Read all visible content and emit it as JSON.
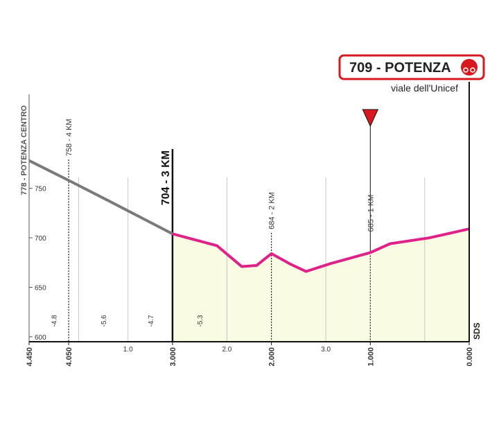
{
  "chart_data": {
    "type": "profile",
    "start_label": "778 - POTENZA CENTRO",
    "finish_label": "709 - POTENZA",
    "finish_street": "viale dell'Unicef",
    "brand": "SDS",
    "xlim": [
      4.45,
      0
    ],
    "ylim": [
      595,
      845
    ],
    "yticks": [
      600,
      650,
      700,
      750
    ],
    "xticks": [
      {
        "value": 4.45,
        "label": "4.450"
      },
      {
        "value": 4.05,
        "label": "4.050"
      },
      {
        "value": 3.0,
        "label": "3.000"
      },
      {
        "value": 2.0,
        "label": "2.000"
      },
      {
        "value": 1.0,
        "label": "1.000"
      },
      {
        "value": 0,
        "label": "0.000"
      }
    ],
    "km_marks": [
      {
        "value": 3.45,
        "label": "1.0"
      },
      {
        "value": 2.45,
        "label": "2.0"
      },
      {
        "value": 1.45,
        "label": "3.0"
      }
    ],
    "divisions": [
      3.95,
      0.45
    ],
    "gradients": [
      {
        "from": 4.45,
        "to": 3.95,
        "value": -4.8
      },
      {
        "from": 3.95,
        "to": 3.45,
        "value": -5.6
      },
      {
        "from": 3.45,
        "to": 3.0,
        "value": -4.7
      },
      {
        "from": 3.0,
        "to": 2.45,
        "value": -5.3
      }
    ],
    "series": [
      {
        "color": "#7a7a7a",
        "x": [
          4.45,
          4.05,
          3.6,
          3.0
        ],
        "values": [
          778,
          758,
          735,
          704
        ]
      },
      {
        "color": "#e0218a",
        "fill": "#fafbe3",
        "x": [
          3.0,
          2.55,
          2.3,
          2.15,
          2.0,
          1.8,
          1.65,
          1.4,
          1.0,
          0.8,
          0.4,
          0
        ],
        "values": [
          704,
          692,
          671,
          672,
          684,
          673,
          666,
          674,
          685,
          694,
          700,
          709
        ]
      }
    ],
    "annotations": [
      {
        "x": 4.05,
        "label": "758 - 4 KM"
      },
      {
        "x": 3.0,
        "label": "704 - 3 KM",
        "bold": true
      },
      {
        "x": 2.0,
        "label": "684 - 2 KM"
      },
      {
        "x": 1.0,
        "label": "685 - 1 KM",
        "flag": true
      }
    ]
  }
}
